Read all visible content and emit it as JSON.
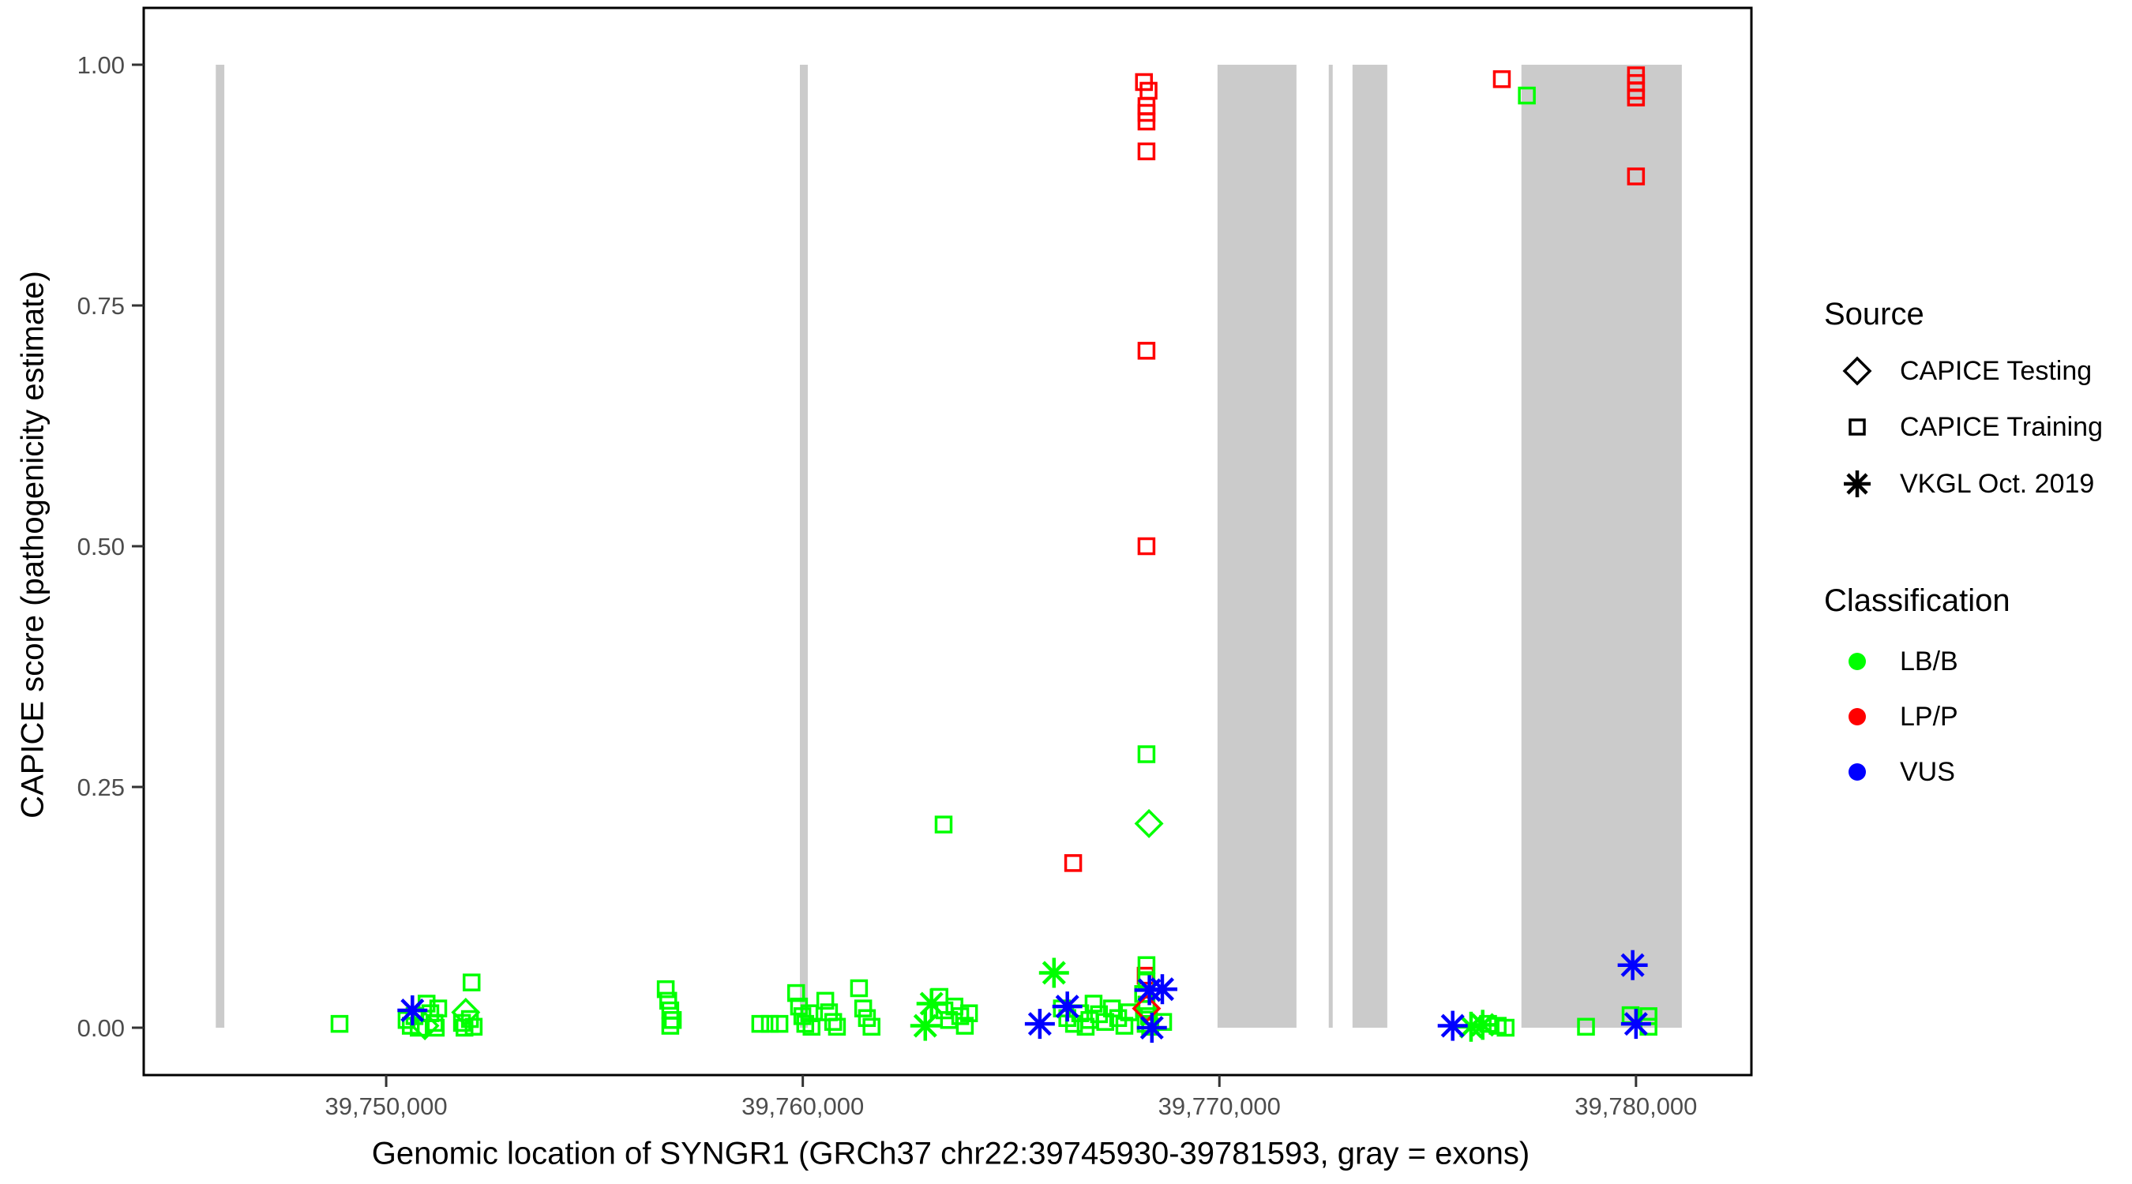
{
  "figure": {
    "background": "#FFFFFF",
    "panel_border_color": "#000000",
    "tick_label_color": "#4D4D4D",
    "axis_title_color": "#000000",
    "exon_color": "#CBCBCB"
  },
  "axes": {
    "x_title": "Genomic location of SYNGR1 (GRCh37 chr22:39745930-39781593, gray = exons)",
    "y_title": "CAPICE score (pathogenicity estimate)"
  },
  "legend": {
    "source": {
      "title": "Source",
      "items": [
        {
          "label": "CAPICE Testing",
          "shape": "diamond"
        },
        {
          "label": "CAPICE Training",
          "shape": "square"
        },
        {
          "label": "VKGL Oct. 2019",
          "shape": "asterisk"
        }
      ]
    },
    "classification": {
      "title": "Classification",
      "items": [
        {
          "label": "LB/B",
          "color": "#00FF00"
        },
        {
          "label": "LP/P",
          "color": "#FF0000"
        },
        {
          "label": "VUS",
          "color": "#0000FF"
        }
      ]
    }
  },
  "chart_data": {
    "type": "scatter",
    "title": "",
    "xlabel": "Genomic location of SYNGR1 (GRCh37 chr22:39745930-39781593, gray = exons)",
    "ylabel": "CAPICE score (pathogenicity estimate)",
    "xlim": [
      39744180,
      39782770
    ],
    "ylim": [
      0,
      1
    ],
    "x_ticks": [
      39750000,
      39760000,
      39770000,
      39780000
    ],
    "x_tick_labels": [
      "39,750,000",
      "39,760,000",
      "39,770,000",
      "39,780,000"
    ],
    "y_ticks": [
      0,
      0.25,
      0.5,
      0.75,
      1
    ],
    "y_tick_labels": [
      "0.00",
      "0.25",
      "0.50",
      "0.75",
      "1.00"
    ],
    "grid": false,
    "legend_position": "right",
    "exons_note": "gray vertical bands = exons, genomic start/end coordinates",
    "exons": [
      [
        39745910,
        39746115
      ],
      [
        39759930,
        39760120
      ],
      [
        39769955,
        39771850
      ],
      [
        39772625,
        39772720
      ],
      [
        39773195,
        39774030
      ],
      [
        39777250,
        39781100
      ]
    ],
    "shape_by_source": {
      "CAPICE Testing": "diamond",
      "CAPICE Training": "square",
      "VKGL Oct. 2019": "asterisk"
    },
    "color_by_classification": {
      "LB/B": "#00FF00",
      "LP/P": "#FF0000",
      "VUS": "#0000FF"
    },
    "points": [
      {
        "x": 39768190,
        "y": 0.982,
        "source": "CAPICE Training",
        "classification": "LP/P"
      },
      {
        "x": 39768300,
        "y": 0.973,
        "source": "CAPICE Training",
        "classification": "LP/P"
      },
      {
        "x": 39768250,
        "y": 0.957,
        "source": "CAPICE Training",
        "classification": "LP/P"
      },
      {
        "x": 39768250,
        "y": 0.95,
        "source": "CAPICE Training",
        "classification": "LP/P"
      },
      {
        "x": 39768250,
        "y": 0.941,
        "source": "CAPICE Training",
        "classification": "LP/P"
      },
      {
        "x": 39768250,
        "y": 0.91,
        "source": "CAPICE Training",
        "classification": "LP/P"
      },
      {
        "x": 39768250,
        "y": 0.703,
        "source": "CAPICE Training",
        "classification": "LP/P"
      },
      {
        "x": 39768250,
        "y": 0.5,
        "source": "CAPICE Training",
        "classification": "LP/P"
      },
      {
        "x": 39766490,
        "y": 0.171,
        "source": "CAPICE Training",
        "classification": "LP/P"
      },
      {
        "x": 39768230,
        "y": 0.054,
        "source": "CAPICE Training",
        "classification": "LP/P"
      },
      {
        "x": 39776780,
        "y": 0.985,
        "source": "CAPICE Training",
        "classification": "LP/P"
      },
      {
        "x": 39780000,
        "y": 0.989,
        "source": "CAPICE Training",
        "classification": "LP/P"
      },
      {
        "x": 39780000,
        "y": 0.981,
        "source": "CAPICE Training",
        "classification": "LP/P"
      },
      {
        "x": 39780000,
        "y": 0.973,
        "source": "CAPICE Training",
        "classification": "LP/P"
      },
      {
        "x": 39780000,
        "y": 0.966,
        "source": "CAPICE Training",
        "classification": "LP/P"
      },
      {
        "x": 39780000,
        "y": 0.884,
        "source": "CAPICE Training",
        "classification": "LP/P"
      },
      {
        "x": 39748880,
        "y": 0.004,
        "source": "CAPICE Training",
        "classification": "LB/B"
      },
      {
        "x": 39750490,
        "y": 0.008,
        "source": "CAPICE Training",
        "classification": "LB/B"
      },
      {
        "x": 39750590,
        "y": 0.002,
        "source": "CAPICE Training",
        "classification": "LB/B"
      },
      {
        "x": 39750680,
        "y": 0.012,
        "source": "CAPICE Training",
        "classification": "LB/B"
      },
      {
        "x": 39750780,
        "y": 0.0,
        "source": "CAPICE Training",
        "classification": "LB/B"
      },
      {
        "x": 39750930,
        "y": 0.002,
        "source": "CAPICE Testing",
        "classification": "LB/B"
      },
      {
        "x": 39750970,
        "y": 0.025,
        "source": "CAPICE Training",
        "classification": "LB/B"
      },
      {
        "x": 39751060,
        "y": 0.015,
        "source": "CAPICE Training",
        "classification": "LB/B"
      },
      {
        "x": 39751160,
        "y": 0.005,
        "source": "CAPICE Training",
        "classification": "LB/B"
      },
      {
        "x": 39751250,
        "y": 0.02,
        "source": "CAPICE Training",
        "classification": "LB/B"
      },
      {
        "x": 39751190,
        "y": 0.0,
        "source": "CAPICE Training",
        "classification": "LB/B"
      },
      {
        "x": 39751910,
        "y": 0.016,
        "source": "CAPICE Testing",
        "classification": "LB/B"
      },
      {
        "x": 39751820,
        "y": 0.005,
        "source": "CAPICE Training",
        "classification": "LB/B"
      },
      {
        "x": 39752010,
        "y": 0.009,
        "source": "CAPICE Training",
        "classification": "LB/B"
      },
      {
        "x": 39752100,
        "y": 0.001,
        "source": "CAPICE Training",
        "classification": "LB/B"
      },
      {
        "x": 39751880,
        "y": 0.0,
        "source": "CAPICE Training",
        "classification": "LB/B"
      },
      {
        "x": 39752050,
        "y": 0.047,
        "source": "CAPICE Training",
        "classification": "LB/B"
      },
      {
        "x": 39756710,
        "y": 0.04,
        "source": "CAPICE Training",
        "classification": "LB/B"
      },
      {
        "x": 39756770,
        "y": 0.028,
        "source": "CAPICE Training",
        "classification": "LB/B"
      },
      {
        "x": 39756820,
        "y": 0.018,
        "source": "CAPICE Training",
        "classification": "LB/B"
      },
      {
        "x": 39756880,
        "y": 0.008,
        "source": "CAPICE Training",
        "classification": "LB/B"
      },
      {
        "x": 39756820,
        "y": 0.002,
        "source": "CAPICE Training",
        "classification": "LB/B"
      },
      {
        "x": 39758980,
        "y": 0.004,
        "source": "CAPICE Training",
        "classification": "LB/B"
      },
      {
        "x": 39759210,
        "y": 0.004,
        "source": "CAPICE Training",
        "classification": "LB/B"
      },
      {
        "x": 39759440,
        "y": 0.004,
        "source": "CAPICE Training",
        "classification": "LB/B"
      },
      {
        "x": 39759840,
        "y": 0.036,
        "source": "CAPICE Training",
        "classification": "LB/B"
      },
      {
        "x": 39759910,
        "y": 0.022,
        "source": "CAPICE Training",
        "classification": "LB/B"
      },
      {
        "x": 39759990,
        "y": 0.012,
        "source": "CAPICE Training",
        "classification": "LB/B"
      },
      {
        "x": 39760060,
        "y": 0.004,
        "source": "CAPICE Training",
        "classification": "LB/B"
      },
      {
        "x": 39760160,
        "y": 0.015,
        "source": "CAPICE Training",
        "classification": "LB/B"
      },
      {
        "x": 39760210,
        "y": 0.001,
        "source": "CAPICE Training",
        "classification": "LB/B"
      },
      {
        "x": 39760540,
        "y": 0.028,
        "source": "CAPICE Training",
        "classification": "LB/B"
      },
      {
        "x": 39760630,
        "y": 0.016,
        "source": "CAPICE Training",
        "classification": "LB/B"
      },
      {
        "x": 39760730,
        "y": 0.006,
        "source": "CAPICE Training",
        "classification": "LB/B"
      },
      {
        "x": 39760820,
        "y": 0.001,
        "source": "CAPICE Training",
        "classification": "LB/B"
      },
      {
        "x": 39761350,
        "y": 0.041,
        "source": "CAPICE Training",
        "classification": "LB/B"
      },
      {
        "x": 39761450,
        "y": 0.02,
        "source": "CAPICE Training",
        "classification": "LB/B"
      },
      {
        "x": 39761540,
        "y": 0.01,
        "source": "CAPICE Training",
        "classification": "LB/B"
      },
      {
        "x": 39761650,
        "y": 0.001,
        "source": "CAPICE Training",
        "classification": "LB/B"
      },
      {
        "x": 39763090,
        "y": 0.025,
        "source": "VKGL Oct. 2019",
        "classification": "LB/B"
      },
      {
        "x": 39762940,
        "y": 0.002,
        "source": "VKGL Oct. 2019",
        "classification": "LB/B"
      },
      {
        "x": 39763280,
        "y": 0.032,
        "source": "CAPICE Training",
        "classification": "LB/B"
      },
      {
        "x": 39763400,
        "y": 0.018,
        "source": "CAPICE Training",
        "classification": "LB/B"
      },
      {
        "x": 39763510,
        "y": 0.008,
        "source": "CAPICE Training",
        "classification": "LB/B"
      },
      {
        "x": 39763640,
        "y": 0.022,
        "source": "CAPICE Training",
        "classification": "LB/B"
      },
      {
        "x": 39763780,
        "y": 0.012,
        "source": "CAPICE Training",
        "classification": "LB/B"
      },
      {
        "x": 39763890,
        "y": 0.002,
        "source": "CAPICE Training",
        "classification": "LB/B"
      },
      {
        "x": 39763990,
        "y": 0.015,
        "source": "CAPICE Training",
        "classification": "LB/B"
      },
      {
        "x": 39763380,
        "y": 0.211,
        "source": "CAPICE Training",
        "classification": "LB/B"
      },
      {
        "x": 39766030,
        "y": 0.057,
        "source": "VKGL Oct. 2019",
        "classification": "LB/B"
      },
      {
        "x": 39766220,
        "y": 0.02,
        "source": "CAPICE Training",
        "classification": "LB/B"
      },
      {
        "x": 39766350,
        "y": 0.01,
        "source": "CAPICE Training",
        "classification": "LB/B"
      },
      {
        "x": 39766510,
        "y": 0.004,
        "source": "CAPICE Training",
        "classification": "LB/B"
      },
      {
        "x": 39766660,
        "y": 0.015,
        "source": "CAPICE Training",
        "classification": "LB/B"
      },
      {
        "x": 39766790,
        "y": 0.001,
        "source": "CAPICE Training",
        "classification": "LB/B"
      },
      {
        "x": 39766880,
        "y": 0.008,
        "source": "CAPICE Training",
        "classification": "LB/B"
      },
      {
        "x": 39766980,
        "y": 0.025,
        "source": "CAPICE Training",
        "classification": "LB/B"
      },
      {
        "x": 39767110,
        "y": 0.014,
        "source": "CAPICE Training",
        "classification": "LB/B"
      },
      {
        "x": 39767260,
        "y": 0.006,
        "source": "CAPICE Training",
        "classification": "LB/B"
      },
      {
        "x": 39767420,
        "y": 0.02,
        "source": "CAPICE Training",
        "classification": "LB/B"
      },
      {
        "x": 39767570,
        "y": 0.01,
        "source": "CAPICE Training",
        "classification": "LB/B"
      },
      {
        "x": 39767720,
        "y": 0.002,
        "source": "CAPICE Training",
        "classification": "LB/B"
      },
      {
        "x": 39767830,
        "y": 0.016,
        "source": "CAPICE Training",
        "classification": "LB/B"
      },
      {
        "x": 39768250,
        "y": 0.284,
        "source": "CAPICE Training",
        "classification": "LB/B"
      },
      {
        "x": 39768310,
        "y": 0.212,
        "source": "CAPICE Testing",
        "classification": "LB/B"
      },
      {
        "x": 39768250,
        "y": 0.065,
        "source": "CAPICE Training",
        "classification": "LB/B"
      },
      {
        "x": 39768250,
        "y": 0.048,
        "source": "CAPICE Training",
        "classification": "LB/B"
      },
      {
        "x": 39768170,
        "y": 0.035,
        "source": "CAPICE Training",
        "classification": "LB/B"
      },
      {
        "x": 39768250,
        "y": 0.024,
        "source": "CAPICE Training",
        "classification": "LB/B"
      },
      {
        "x": 39768310,
        "y": 0.012,
        "source": "CAPICE Training",
        "classification": "LB/B"
      },
      {
        "x": 39768230,
        "y": 0.004,
        "source": "CAPICE Training",
        "classification": "LB/B"
      },
      {
        "x": 39768340,
        "y": 0.001,
        "source": "CAPICE Training",
        "classification": "LB/B"
      },
      {
        "x": 39768650,
        "y": 0.006,
        "source": "CAPICE Training",
        "classification": "LB/B"
      },
      {
        "x": 39776040,
        "y": 0.001,
        "source": "VKGL Oct. 2019",
        "classification": "LB/B"
      },
      {
        "x": 39776320,
        "y": 0.003,
        "source": "VKGL Oct. 2019",
        "classification": "LB/B"
      },
      {
        "x": 39776450,
        "y": 0.004,
        "source": "CAPICE Training",
        "classification": "LB/B"
      },
      {
        "x": 39776680,
        "y": 0.002,
        "source": "CAPICE Training",
        "classification": "LB/B"
      },
      {
        "x": 39776870,
        "y": 0.0,
        "source": "CAPICE Training",
        "classification": "LB/B"
      },
      {
        "x": 39777380,
        "y": 0.968,
        "source": "CAPICE Training",
        "classification": "LB/B"
      },
      {
        "x": 39778800,
        "y": 0.001,
        "source": "CAPICE Training",
        "classification": "LB/B"
      },
      {
        "x": 39779870,
        "y": 0.013,
        "source": "CAPICE Training",
        "classification": "LB/B"
      },
      {
        "x": 39780300,
        "y": 0.012,
        "source": "CAPICE Training",
        "classification": "LB/B"
      },
      {
        "x": 39780300,
        "y": 0.001,
        "source": "CAPICE Training",
        "classification": "LB/B"
      },
      {
        "x": 39768250,
        "y": 0.02,
        "source": "CAPICE Testing",
        "classification": "LP/P"
      },
      {
        "x": 39750630,
        "y": 0.018,
        "source": "VKGL Oct. 2019",
        "classification": "VUS"
      },
      {
        "x": 39765690,
        "y": 0.004,
        "source": "VKGL Oct. 2019",
        "classification": "VUS"
      },
      {
        "x": 39766350,
        "y": 0.022,
        "source": "VKGL Oct. 2019",
        "classification": "VUS"
      },
      {
        "x": 39768320,
        "y": 0.039,
        "source": "VKGL Oct. 2019",
        "classification": "VUS"
      },
      {
        "x": 39768630,
        "y": 0.04,
        "source": "VKGL Oct. 2019",
        "classification": "VUS"
      },
      {
        "x": 39768380,
        "y": 0.0,
        "source": "VKGL Oct. 2019",
        "classification": "VUS"
      },
      {
        "x": 39775600,
        "y": 0.002,
        "source": "VKGL Oct. 2019",
        "classification": "VUS"
      },
      {
        "x": 39779920,
        "y": 0.065,
        "source": "VKGL Oct. 2019",
        "classification": "VUS"
      },
      {
        "x": 39780000,
        "y": 0.004,
        "source": "VKGL Oct. 2019",
        "classification": "VUS"
      }
    ]
  }
}
